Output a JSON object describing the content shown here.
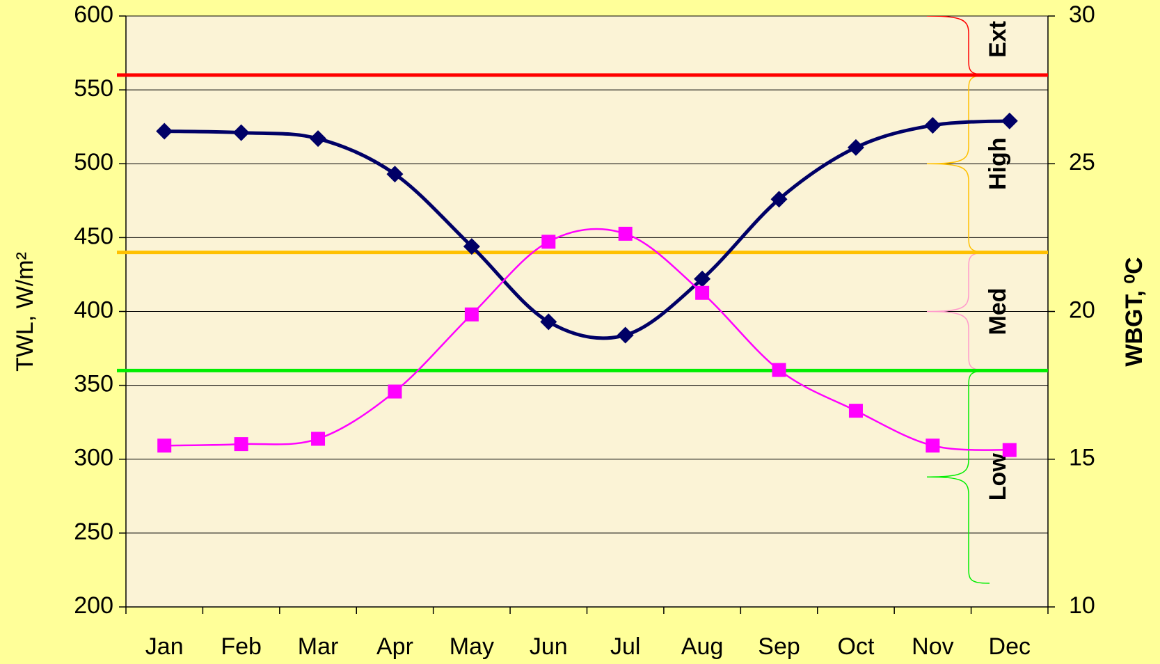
{
  "chart_data": {
    "type": "line",
    "ylabel": "TWL, W/m²",
    "y2label": "WBGT, ⁰C",
    "categories": [
      "Jan",
      "Feb",
      "Mar",
      "Apr",
      "May",
      "Jun",
      "Jul",
      "Aug",
      "Sep",
      "Oct",
      "Nov",
      "Dec"
    ],
    "series": [
      {
        "name": "TWL",
        "color": "#000066",
        "marker": "diamond",
        "values": [
          522,
          521,
          517,
          493,
          444,
          393,
          384,
          422,
          476,
          511,
          526,
          529
        ]
      },
      {
        "name": "WBGT",
        "color": "#ff00ff",
        "marker": "square",
        "axis": "y2",
        "values": [
          15.46,
          15.51,
          15.69,
          17.29,
          19.9,
          22.36,
          22.63,
          20.63,
          18.02,
          16.64,
          15.46,
          15.31
        ]
      }
    ],
    "thresholds": [
      {
        "value": 28,
        "color": "#ff0000"
      },
      {
        "value": 22,
        "color": "#ffc000"
      },
      {
        "value": 18,
        "color": "#00ee00"
      }
    ],
    "zones": [
      {
        "label": "Ext",
        "color": "#ff0000"
      },
      {
        "label": "High",
        "color": "#ffc000"
      },
      {
        "label": "Med",
        "color": "#ff99cc"
      },
      {
        "label": "Low",
        "color": "#00ee00"
      }
    ],
    "ylim": [
      200,
      600
    ],
    "yticks": [
      200,
      250,
      300,
      350,
      400,
      450,
      500,
      550,
      600
    ],
    "y2lim": [
      10,
      30
    ],
    "y2ticks": [
      10,
      15,
      20,
      25,
      30
    ],
    "grid": true
  }
}
